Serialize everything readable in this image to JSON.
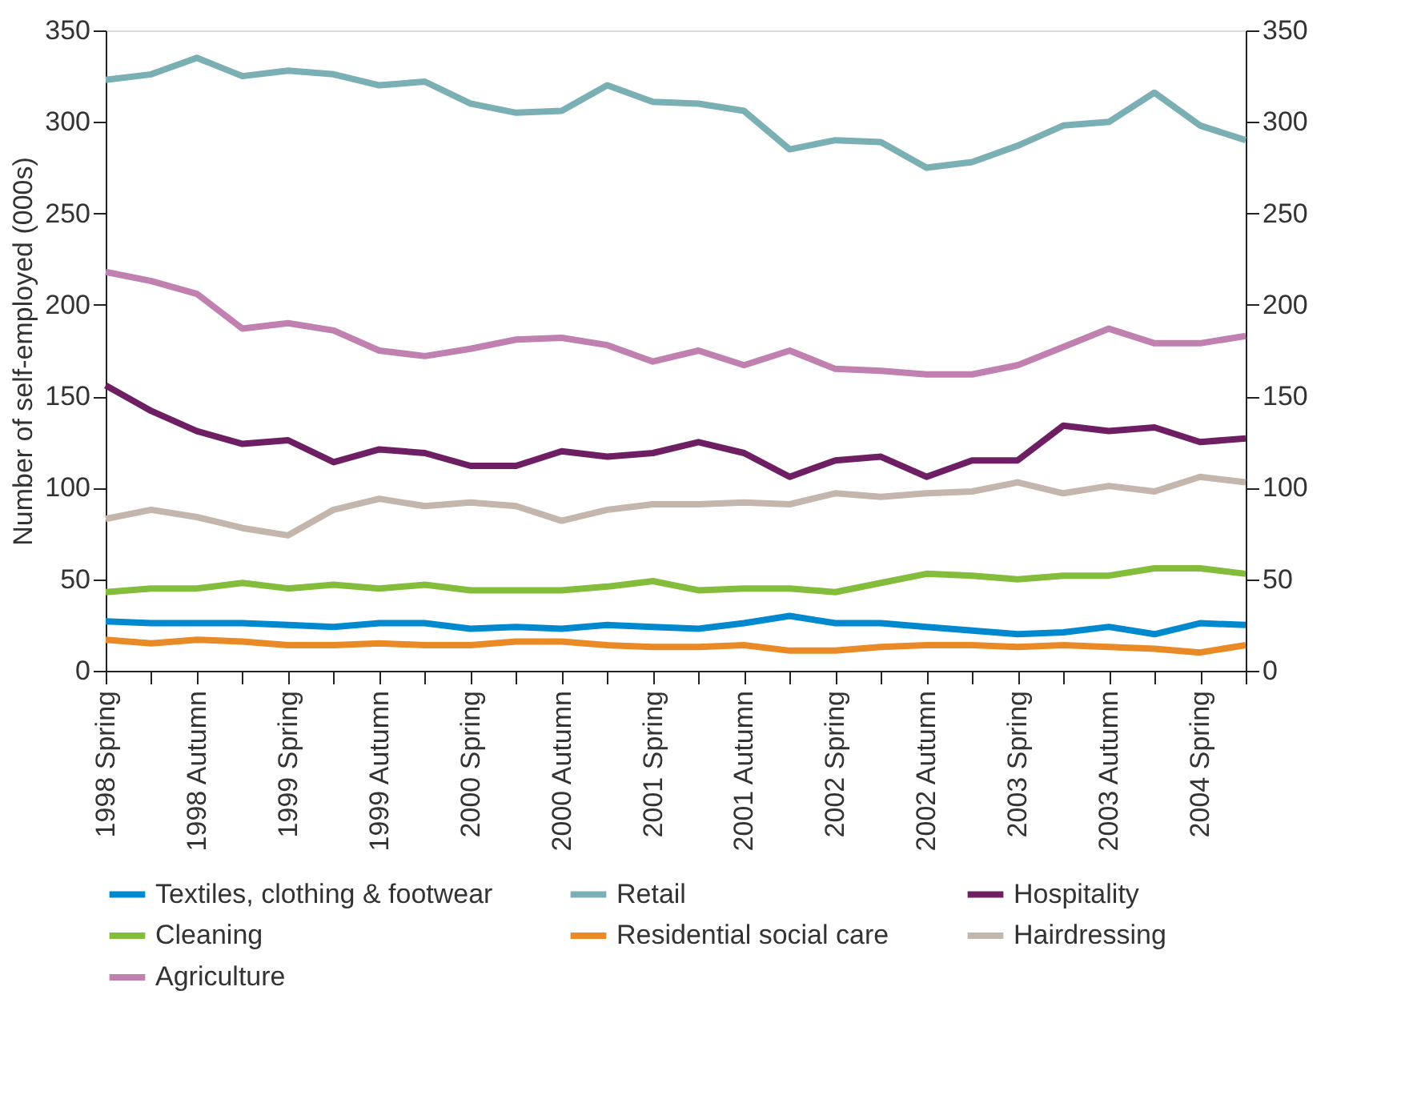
{
  "chart_data": {
    "type": "line",
    "ylabel": "Number of self-employed (000s)",
    "categories": [
      "1998 Spring",
      null,
      "1998 Autumn",
      null,
      "1999 Spring",
      null,
      "1999 Autumn",
      null,
      "2000 Spring",
      null,
      "2000 Autumn",
      null,
      "2001 Spring",
      null,
      "2001 Autumn",
      null,
      "2002 Spring",
      null,
      "2002 Autumn",
      null,
      "2003 Spring",
      null,
      "2003 Autumn",
      null,
      "2004 Spring",
      null
    ],
    "ylim": [
      0,
      350
    ],
    "yticks": [
      0,
      50,
      100,
      150,
      200,
      250,
      300,
      350
    ],
    "y2lim": [
      0,
      350
    ],
    "y2ticks": [
      0,
      50,
      100,
      150,
      200,
      250,
      300,
      350
    ],
    "grid": false,
    "legend": "bottom",
    "line_style": "solid",
    "marker": "none",
    "series": [
      {
        "name": "Textiles, clothing & footwear",
        "color": "#0089cf",
        "values": [
          27,
          26,
          26,
          26,
          25,
          24,
          26,
          26,
          23,
          24,
          23,
          25,
          24,
          23,
          26,
          30,
          26,
          26,
          24,
          22,
          20,
          21,
          24,
          20,
          26,
          25
        ]
      },
      {
        "name": "Retail",
        "color": "#7aafb4",
        "values": [
          323,
          326,
          335,
          325,
          328,
          326,
          320,
          322,
          310,
          305,
          306,
          320,
          311,
          310,
          306,
          285,
          290,
          289,
          275,
          278,
          287,
          298,
          300,
          316,
          298,
          290
        ]
      },
      {
        "name": "Hospitality",
        "color": "#6e1f63",
        "values": [
          156,
          142,
          131,
          124,
          126,
          114,
          121,
          119,
          112,
          112,
          120,
          117,
          119,
          125,
          119,
          106,
          115,
          117,
          106,
          115,
          115,
          134,
          131,
          133,
          125,
          127
        ]
      },
      {
        "name": "Cleaning",
        "color": "#84bd3c",
        "values": [
          43,
          45,
          45,
          48,
          45,
          47,
          45,
          47,
          44,
          44,
          44,
          46,
          49,
          44,
          45,
          45,
          43,
          48,
          53,
          52,
          50,
          52,
          52,
          56,
          56,
          53
        ]
      },
      {
        "name": "Residential social care",
        "color": "#e98a26",
        "values": [
          17,
          15,
          17,
          16,
          14,
          14,
          15,
          14,
          14,
          16,
          16,
          14,
          13,
          13,
          14,
          11,
          11,
          13,
          14,
          14,
          13,
          14,
          13,
          12,
          10,
          14
        ]
      },
      {
        "name": "Hairdressing",
        "color": "#c4b5ad",
        "values": [
          83,
          88,
          84,
          78,
          74,
          88,
          94,
          90,
          92,
          90,
          82,
          88,
          91,
          91,
          92,
          91,
          97,
          95,
          97,
          98,
          103,
          97,
          101,
          98,
          106,
          103
        ]
      },
      {
        "name": "Agriculture",
        "color": "#c080b0",
        "values": [
          218,
          213,
          206,
          187,
          190,
          186,
          175,
          172,
          176,
          181,
          182,
          178,
          169,
          175,
          167,
          175,
          165,
          164,
          162,
          162,
          167,
          177,
          187,
          179,
          179,
          183
        ]
      }
    ]
  }
}
